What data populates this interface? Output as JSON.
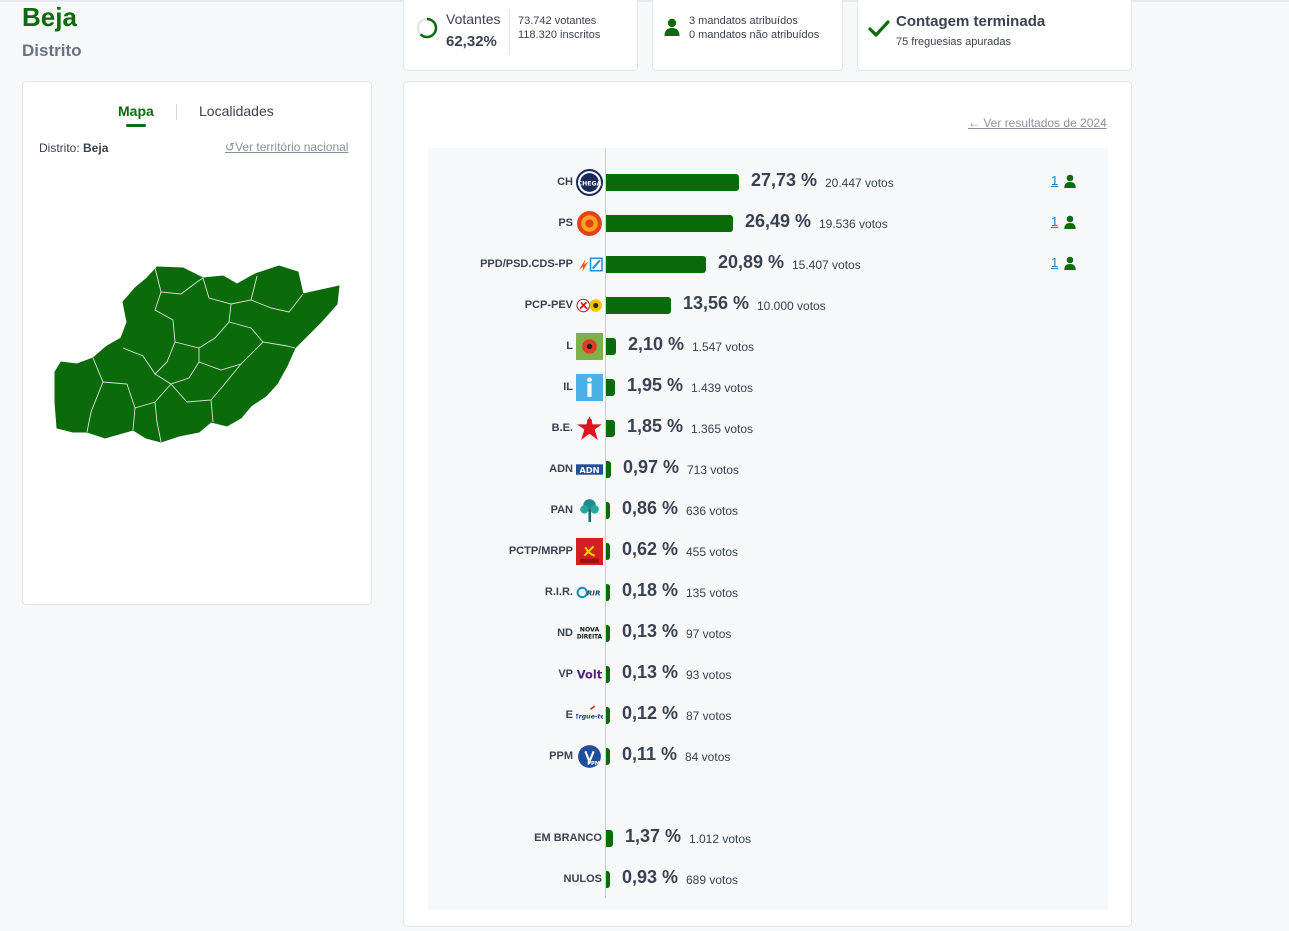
{
  "header": {
    "title": "Beja",
    "subtitle": "Distrito"
  },
  "stats": {
    "votantes_label": "Votantes",
    "votantes_pct": "62,32%",
    "votantes_fraction": 0.6232,
    "votantes_count": "73.742 votantes",
    "inscritos_count": "118.320 inscritos",
    "mandatos_atribuidos": "3 mandatos atribuídos",
    "mandatos_nao_atribuidos": "0 mandatos não atribuídos",
    "contagem_title": "Contagem terminada",
    "freguesias": "75 freguesias apuradas"
  },
  "map_panel": {
    "tab_mapa": "Mapa",
    "tab_localidades": "Localidades",
    "distrito_label": "Distrito:",
    "distrito_value": "Beja",
    "ver_nacional": "Ver território nacional"
  },
  "results": {
    "ver_2024": "Ver resultados de 2024",
    "accent": "#0b6b0b",
    "parties": [
      {
        "name": "CH",
        "pct": "27,73 %",
        "votes": "20.447 votos",
        "value": 27.73,
        "mandates": "1",
        "logo": "chega-logo"
      },
      {
        "name": "PS",
        "pct": "26,49 %",
        "votes": "19.536 votos",
        "value": 26.49,
        "mandates": "1",
        "logo": "ps-logo"
      },
      {
        "name": "PPD/PSD.CDS-PP",
        "pct": "20,89 %",
        "votes": "15.407 votos",
        "value": 20.89,
        "mandates": "1",
        "logo": "ad-logo"
      },
      {
        "name": "PCP-PEV",
        "pct": "13,56 %",
        "votes": "10.000 votos",
        "value": 13.56,
        "mandates": "",
        "logo": "cdu-logo"
      },
      {
        "name": "L",
        "pct": "2,10 %",
        "votes": "1.547 votos",
        "value": 2.1,
        "mandates": "",
        "logo": "livre-logo"
      },
      {
        "name": "IL",
        "pct": "1,95 %",
        "votes": "1.439 votos",
        "value": 1.95,
        "mandates": "",
        "logo": "il-logo"
      },
      {
        "name": "B.E.",
        "pct": "1,85 %",
        "votes": "1.365 votos",
        "value": 1.85,
        "mandates": "",
        "logo": "be-logo"
      },
      {
        "name": "ADN",
        "pct": "0,97 %",
        "votes": "713 votos",
        "value": 0.97,
        "mandates": "",
        "logo": "adn-logo"
      },
      {
        "name": "PAN",
        "pct": "0,86 %",
        "votes": "636 votos",
        "value": 0.86,
        "mandates": "",
        "logo": "pan-logo"
      },
      {
        "name": "PCTP/MRPP",
        "pct": "0,62 %",
        "votes": "455 votos",
        "value": 0.62,
        "mandates": "",
        "logo": "pctp-logo"
      },
      {
        "name": "R.I.R.",
        "pct": "0,18 %",
        "votes": "135 votos",
        "value": 0.18,
        "mandates": "",
        "logo": "rir-logo"
      },
      {
        "name": "ND",
        "pct": "0,13 %",
        "votes": "97 votos",
        "value": 0.13,
        "mandates": "",
        "logo": "nd-logo"
      },
      {
        "name": "VP",
        "pct": "0,13 %",
        "votes": "93 votos",
        "value": 0.13,
        "mandates": "",
        "logo": "volt-logo"
      },
      {
        "name": "E",
        "pct": "0,12 %",
        "votes": "87 votos",
        "value": 0.12,
        "mandates": "",
        "logo": "ergue-te-logo"
      },
      {
        "name": "PPM",
        "pct": "0,11 %",
        "votes": "84 votos",
        "value": 0.11,
        "mandates": "",
        "logo": "ppm-logo"
      }
    ],
    "other": [
      {
        "name": "EM BRANCO",
        "pct": "1,37 %",
        "votes": "1.012 votos",
        "value": 1.37
      },
      {
        "name": "NULOS",
        "pct": "0,93 %",
        "votes": "689 votos",
        "value": 0.93
      }
    ]
  },
  "logo_texts": {
    "chega": "CHEGA",
    "adn": "ADN",
    "rir": "RIR",
    "nd_top": "NOVA",
    "nd_bottom": "DIREITA",
    "volt": "Volt",
    "ergue": "Ergue-te",
    "ppm": "PPM"
  }
}
